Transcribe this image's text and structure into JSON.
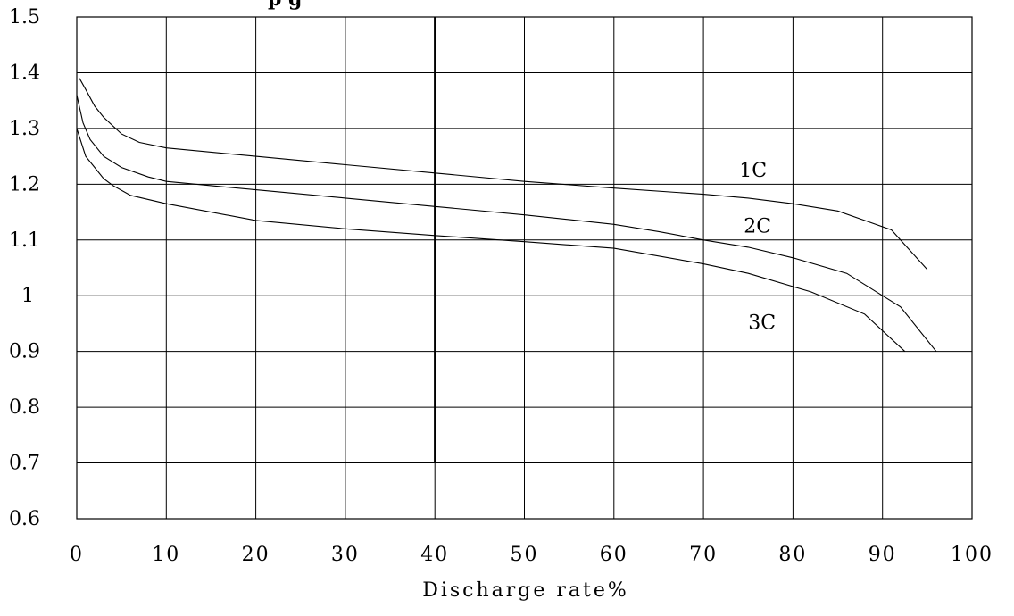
{
  "chart_data": {
    "type": "line",
    "title": "",
    "top_fragment": "p    g",
    "xlabel": "Discharge rate%",
    "ylabel": "",
    "xlim": [
      0,
      100
    ],
    "ylim": [
      0.6,
      1.5
    ],
    "x_ticks": [
      "0",
      "10",
      "20",
      "30",
      "40",
      "50",
      "60",
      "70",
      "80",
      "90",
      "100"
    ],
    "y_ticks": [
      "0.6",
      "0.7",
      "0.8",
      "0.9",
      "1",
      "1.1",
      "1.2",
      "1.3",
      "1.4",
      "1.5"
    ],
    "grid": true,
    "reference_line_x": 40,
    "series": [
      {
        "name": "1C",
        "x": [
          0.3,
          1,
          2,
          3,
          5,
          7,
          10,
          20,
          30,
          40,
          50,
          60,
          70,
          75,
          80,
          85,
          88,
          91,
          95
        ],
        "y": [
          1.39,
          1.37,
          1.34,
          1.32,
          1.29,
          1.275,
          1.265,
          1.25,
          1.235,
          1.22,
          1.205,
          1.193,
          1.182,
          1.175,
          1.165,
          1.152,
          1.135,
          1.118,
          1.047
        ]
      },
      {
        "name": "2C",
        "x": [
          0,
          0.7,
          1.5,
          3,
          5,
          8,
          10,
          20,
          30,
          40,
          50,
          60,
          65,
          70,
          75,
          80,
          86,
          90,
          92,
          96
        ],
        "y": [
          1.36,
          1.31,
          1.28,
          1.25,
          1.23,
          1.213,
          1.205,
          1.19,
          1.175,
          1.16,
          1.145,
          1.128,
          1.115,
          1.1,
          1.087,
          1.068,
          1.04,
          1.0,
          0.98,
          0.9
        ]
      },
      {
        "name": "3C",
        "x": [
          0,
          1,
          2,
          3,
          4,
          6,
          10,
          20,
          30,
          40,
          50,
          60,
          70,
          75,
          82,
          88,
          92.5
        ],
        "y": [
          1.3,
          1.25,
          1.23,
          1.21,
          1.198,
          1.18,
          1.165,
          1.135,
          1.12,
          1.108,
          1.097,
          1.085,
          1.057,
          1.04,
          1.007,
          0.967,
          0.9
        ]
      }
    ]
  }
}
